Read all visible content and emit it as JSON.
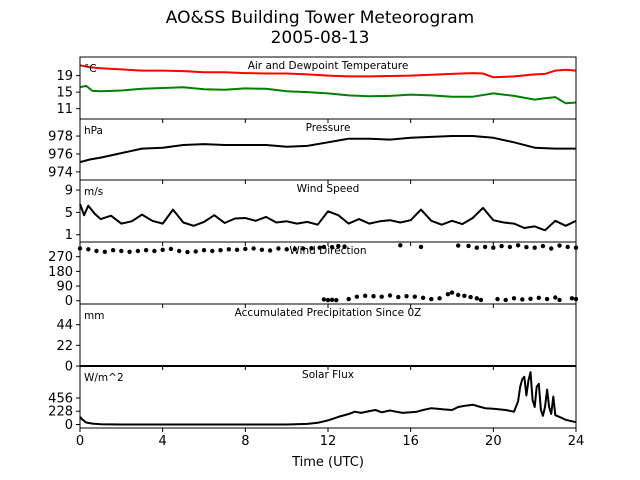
{
  "figure": {
    "title": "AO&SS Building Tower Meteorogram",
    "subtitle": "2005-08-13",
    "xlabel": "Time (UTC)",
    "xticks": [
      "0",
      "4",
      "8",
      "12",
      "16",
      "20",
      "24"
    ]
  },
  "chart_data": [
    {
      "type": "line",
      "title": "Air and Dewpoint Temperature",
      "ylabel": "°C",
      "ylim": [
        8.5,
        23.5
      ],
      "yticks": [
        11,
        15,
        19
      ],
      "xlim": [
        0,
        24
      ],
      "series": [
        {
          "color": "#ff0000",
          "x": [
            0,
            0.5,
            1,
            2,
            3,
            4,
            5,
            6,
            7,
            8,
            9,
            10,
            11,
            12,
            13,
            14,
            15,
            16,
            17,
            18,
            19,
            19.5,
            20,
            21,
            22,
            22.5,
            23,
            23.5,
            24
          ],
          "values": [
            21.5,
            21,
            20.8,
            20.5,
            20.2,
            20.2,
            20.1,
            19.8,
            19.8,
            19.6,
            19.5,
            19.5,
            19.3,
            19,
            18.8,
            18.8,
            18.9,
            19,
            19.2,
            19.4,
            19.6,
            19.5,
            18.6,
            18.8,
            19.3,
            19.4,
            20.2,
            20.4,
            20.2
          ]
        },
        {
          "color": "#008000",
          "x": [
            0,
            0.3,
            0.6,
            1,
            2,
            3,
            4,
            5,
            6,
            7,
            8,
            9,
            10,
            11,
            12,
            13,
            14,
            15,
            16,
            17,
            18,
            19,
            20,
            20.5,
            21,
            22,
            22.5,
            23,
            23.5,
            24
          ],
          "values": [
            16.2,
            16.5,
            15.3,
            15.2,
            15.4,
            15.8,
            16,
            16.2,
            15.7,
            15.6,
            15.9,
            15.8,
            15.2,
            15,
            14.7,
            14.2,
            14,
            14.1,
            14.4,
            14.2,
            13.9,
            13.9,
            14.7,
            14.4,
            14.1,
            13.2,
            13.5,
            13.8,
            12.3,
            12.5
          ]
        }
      ]
    },
    {
      "type": "line",
      "title": "Pressure",
      "ylabel": "hPa",
      "ylim": [
        973.1,
        979.9
      ],
      "yticks": [
        974,
        976,
        978
      ],
      "xlim": [
        0,
        24
      ],
      "series": [
        {
          "color": "#000000",
          "x": [
            0,
            0.5,
            1,
            2,
            3,
            4,
            5,
            6,
            7,
            8,
            9,
            10,
            11,
            12,
            12.5,
            13,
            14,
            15,
            16,
            17,
            18,
            19,
            20,
            21,
            22,
            23,
            24
          ],
          "values": [
            975.1,
            975.4,
            975.6,
            976.1,
            976.6,
            976.7,
            977.0,
            977.1,
            977.0,
            977.0,
            977.0,
            976.8,
            976.9,
            977.3,
            977.5,
            977.7,
            977.7,
            977.6,
            977.8,
            977.9,
            978.0,
            978.0,
            977.8,
            977.3,
            976.7,
            976.6,
            976.6
          ]
        }
      ]
    },
    {
      "type": "line",
      "title": "Wind Speed",
      "ylabel": "m/s",
      "ylim": [
        -0.3,
        10.8
      ],
      "yticks": [
        1,
        5,
        9
      ],
      "xlim": [
        0,
        24
      ],
      "series": [
        {
          "color": "#000000",
          "x": [
            0,
            0.2,
            0.4,
            0.7,
            1,
            1.5,
            2,
            2.5,
            3,
            3.5,
            4,
            4.5,
            5,
            5.5,
            6,
            6.5,
            7,
            7.5,
            8,
            8.5,
            9,
            9.5,
            10,
            10.5,
            11,
            11.5,
            12,
            12.5,
            13,
            13.5,
            14,
            14.5,
            15,
            15.5,
            16,
            16.5,
            17,
            17.5,
            18,
            18.5,
            19,
            19.5,
            20,
            20.5,
            21,
            21.5,
            22,
            22.5,
            23,
            23.5,
            24
          ],
          "values": [
            6.5,
            4.5,
            6.2,
            4.8,
            3.8,
            4.4,
            3.0,
            3.4,
            4.6,
            3.5,
            3.0,
            5.5,
            3.2,
            2.6,
            3.3,
            4.5,
            3.1,
            3.9,
            4.0,
            3.5,
            4.2,
            3.2,
            3.4,
            3.0,
            3.3,
            2.8,
            5.2,
            4.5,
            3.0,
            3.8,
            3.0,
            3.4,
            3.6,
            3.2,
            3.6,
            5.5,
            3.5,
            2.8,
            3.5,
            2.9,
            4.0,
            5.8,
            3.6,
            3.2,
            3.0,
            2.2,
            2.5,
            1.8,
            3.5,
            2.6,
            3.5
          ]
        }
      ]
    },
    {
      "type": "scatter",
      "title": "Wind Direction",
      "ylabel": "",
      "ylim": [
        -20,
        360
      ],
      "yticks": [
        0,
        90,
        180,
        270
      ],
      "xlim": [
        0,
        24
      ],
      "series": [
        {
          "color": "#000000",
          "x": [
            0,
            0.4,
            0.8,
            1.2,
            1.6,
            2.0,
            2.4,
            2.8,
            3.2,
            3.6,
            4.0,
            4.4,
            4.8,
            5.2,
            5.6,
            6.0,
            6.4,
            6.8,
            7.2,
            7.6,
            8.0,
            8.4,
            8.8,
            9.2,
            9.6,
            10.0,
            10.4,
            10.8,
            11.2,
            11.6,
            11.8,
            12.2,
            12.5,
            12.8,
            15.5,
            16.5,
            18.3,
            18.8,
            19.2,
            19.6,
            20.0,
            20.4,
            20.8,
            21.2,
            21.6,
            22.0,
            22.4,
            22.8,
            23.2,
            23.6,
            24.0
          ],
          "values": [
            320,
            315,
            305,
            300,
            310,
            305,
            300,
            305,
            310,
            305,
            312,
            318,
            305,
            298,
            302,
            310,
            305,
            310,
            315,
            312,
            318,
            320,
            312,
            308,
            320,
            315,
            318,
            320,
            322,
            325,
            330,
            328,
            335,
            332,
            340,
            330,
            338,
            336,
            325,
            330,
            325,
            335,
            330,
            340,
            328,
            325,
            335,
            320,
            338,
            330,
            325
          ]
        },
        {
          "color": "#000000",
          "x": [
            11.8,
            12.0,
            12.2,
            12.4,
            13.0,
            13.4,
            13.8,
            14.2,
            14.6,
            15.0,
            15.4,
            15.8,
            16.2,
            16.6,
            17.0,
            17.4,
            17.8,
            18.0,
            18.3,
            18.6,
            18.9,
            19.2,
            19.4,
            20.2,
            20.6,
            21.0,
            21.4,
            21.8,
            22.2,
            22.6,
            23.0,
            23.2,
            23.8,
            24.0
          ],
          "values": [
            8,
            4,
            6,
            3,
            10,
            25,
            30,
            28,
            25,
            32,
            22,
            28,
            25,
            18,
            10,
            15,
            40,
            50,
            35,
            30,
            22,
            15,
            5,
            10,
            5,
            15,
            8,
            12,
            18,
            10,
            20,
            5,
            15,
            10
          ]
        }
      ]
    },
    {
      "type": "line",
      "title": "Accumulated Precipitation Since 0Z",
      "ylabel": "mm",
      "ylim": [
        0,
        66
      ],
      "yticks": [
        0,
        22,
        44
      ],
      "xlim": [
        0,
        24
      ],
      "series": [
        {
          "color": "#000000",
          "x": [
            0,
            24
          ],
          "values": [
            0,
            0
          ]
        }
      ]
    },
    {
      "type": "line",
      "title": "Solar Flux",
      "ylabel": "W/m^2",
      "ylim": [
        -60,
        1005
      ],
      "yticks": [
        0,
        228,
        456
      ],
      "xlim": [
        0,
        24
      ],
      "series": [
        {
          "color": "#000000",
          "x": [
            0,
            0.1,
            0.3,
            0.6,
            1,
            2,
            4,
            6,
            8,
            10,
            11,
            11.5,
            12,
            12.5,
            13,
            13.3,
            13.6,
            14,
            14.3,
            14.6,
            15,
            15.3,
            15.6,
            16,
            16.3,
            16.6,
            17,
            17.3,
            17.6,
            18,
            18.3,
            18.6,
            19,
            19.3,
            19.6,
            20,
            20.3,
            20.6,
            21,
            21.2,
            21.3,
            21.4,
            21.5,
            21.6,
            21.7,
            21.8,
            21.9,
            22.0,
            22.1,
            22.2,
            22.3,
            22.4,
            22.5,
            22.6,
            22.7,
            22.8,
            22.9,
            23.0,
            23.2,
            23.5,
            24
          ],
          "values": [
            130,
            90,
            35,
            15,
            5,
            0,
            0,
            0,
            0,
            0,
            10,
            30,
            70,
            130,
            180,
            220,
            200,
            230,
            250,
            210,
            240,
            220,
            200,
            210,
            220,
            250,
            280,
            270,
            260,
            250,
            300,
            320,
            340,
            310,
            280,
            270,
            260,
            250,
            220,
            400,
            650,
            780,
            820,
            500,
            760,
            900,
            420,
            300,
            650,
            700,
            250,
            150,
            300,
            600,
            300,
            180,
            480,
            160,
            130,
            80,
            40
          ]
        }
      ]
    }
  ]
}
